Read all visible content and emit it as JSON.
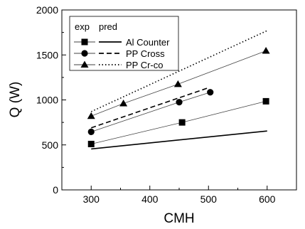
{
  "chart_data": {
    "type": "line",
    "xlabel": "CMH",
    "ylabel": "Q (W)",
    "xlim": [
      250,
      650
    ],
    "ylim": [
      0,
      2000
    ],
    "xticks": [
      300,
      400,
      500,
      600
    ],
    "yticks": [
      0,
      500,
      1000,
      1500,
      2000
    ],
    "grid": false,
    "legend": {
      "placement": "top-left",
      "headers": [
        "exp",
        "pred"
      ],
      "entries": [
        "Al Counter",
        "PP Cross",
        "PP Cr-co"
      ]
    },
    "series": [
      {
        "name": "Al Counter",
        "kind": "exp",
        "marker": "square",
        "x": [
          300,
          455,
          598
        ],
        "y": [
          510,
          750,
          985
        ]
      },
      {
        "name": "PP Cross",
        "kind": "exp",
        "marker": "circle",
        "x": [
          300,
          450,
          503
        ],
        "y": [
          645,
          975,
          1085
        ]
      },
      {
        "name": "PP Cr-co",
        "kind": "exp",
        "marker": "triangle",
        "x": [
          300,
          355,
          448,
          598
        ],
        "y": [
          820,
          960,
          1175,
          1545
        ]
      },
      {
        "name": "Al Counter",
        "kind": "pred",
        "line": "solid",
        "x": [
          300,
          600
        ],
        "y": [
          455,
          655
        ]
      },
      {
        "name": "PP Cross",
        "kind": "pred",
        "line": "dashed",
        "x": [
          300,
          500
        ],
        "y": [
          690,
          1135
        ]
      },
      {
        "name": "PP Cr-co",
        "kind": "pred",
        "line": "dotted",
        "x": [
          300,
          600
        ],
        "y": [
          870,
          1770
        ]
      }
    ]
  }
}
